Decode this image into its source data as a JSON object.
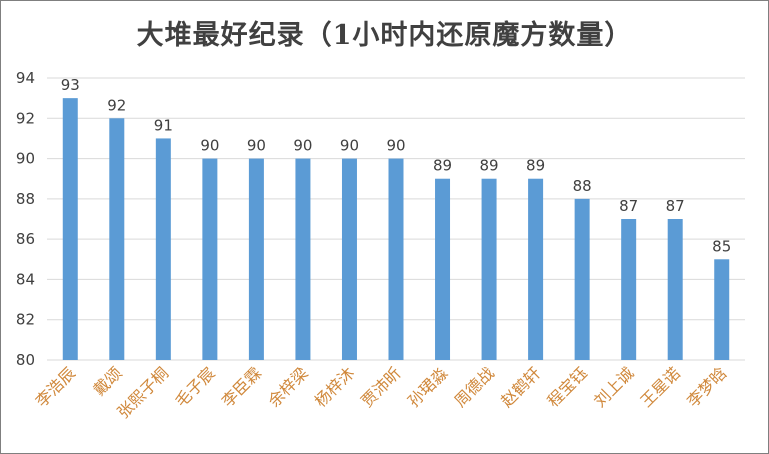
{
  "chart_data": {
    "type": "bar",
    "title": "大堆最好纪录（1小时内还原魔方数量）",
    "categories": [
      "李浩辰",
      "戴颂",
      "张熙子桐",
      "毛子宸",
      "李臣霖",
      "余梓梁",
      "杨梓沐",
      "贾沛昕",
      "孙珺淼",
      "周德战",
      "赵鹤轩",
      "程宝钰",
      "刘上诚",
      "王星诺",
      "李梦晗"
    ],
    "values": [
      93,
      92,
      91,
      90,
      90,
      90,
      90,
      90,
      89,
      89,
      89,
      88,
      87,
      87,
      85
    ],
    "ylim": [
      80,
      94
    ],
    "yticks": [
      80,
      82,
      84,
      86,
      88,
      90,
      92,
      94
    ],
    "grid": true,
    "xlabel": "",
    "ylabel": "",
    "bar_color": "#5b9bd5",
    "grid_color": "#d9d9d9",
    "category_label_color": "#d0883b"
  }
}
